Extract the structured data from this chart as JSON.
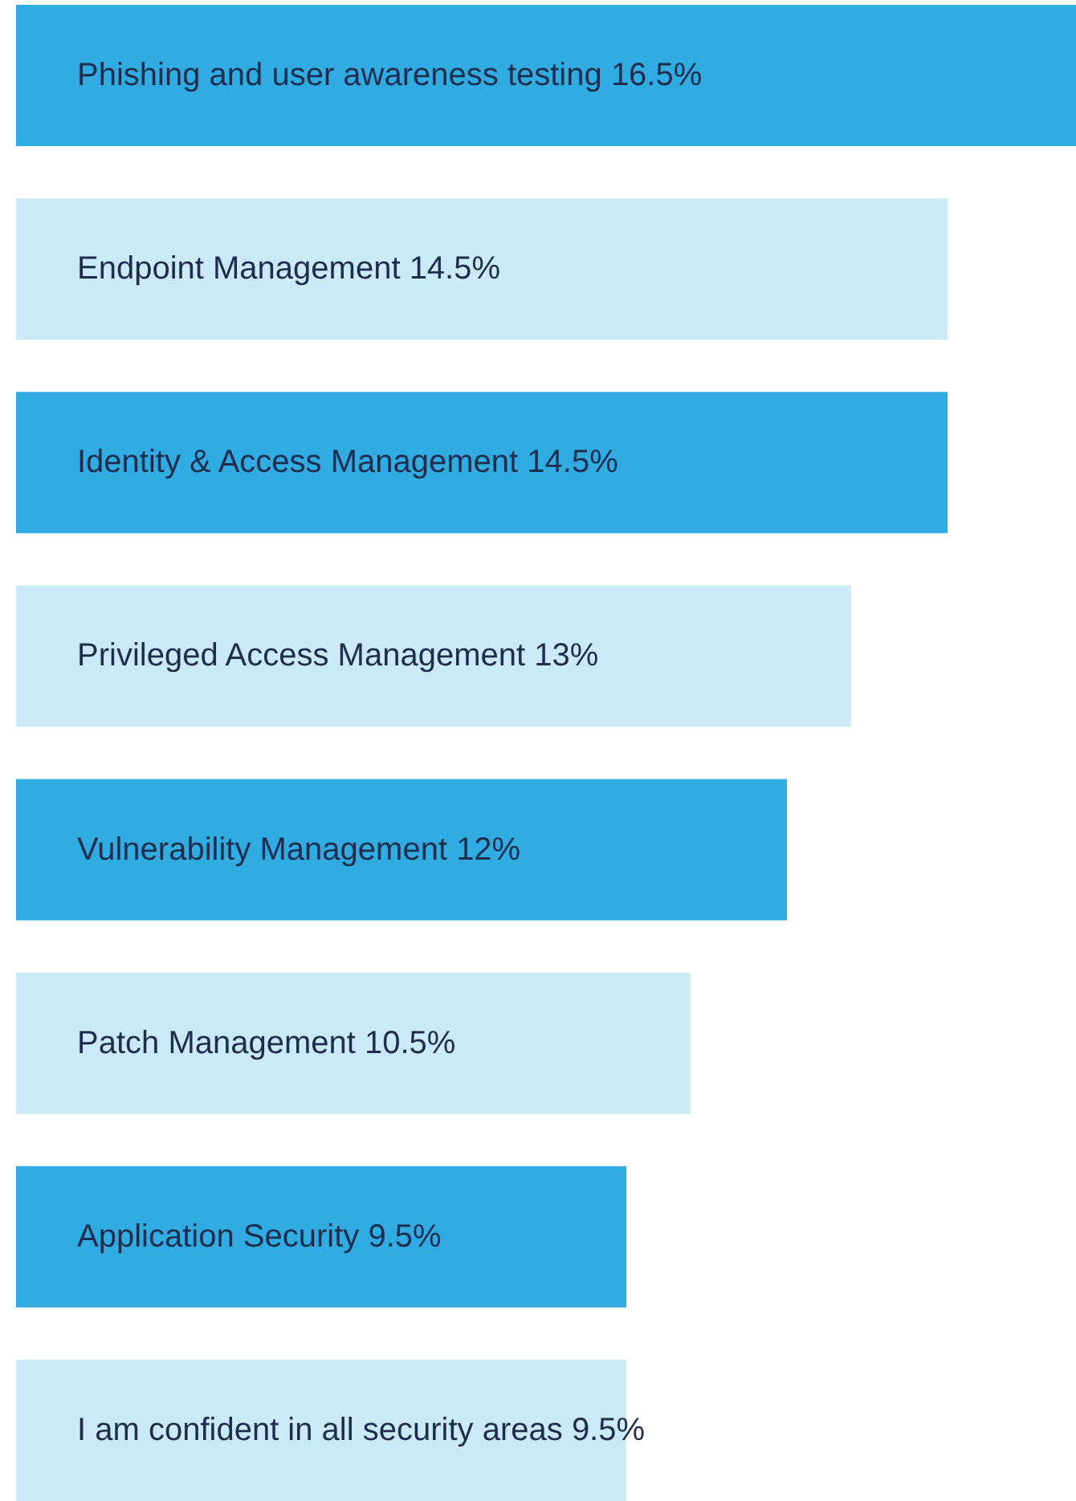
{
  "chart_data": {
    "type": "bar",
    "orientation": "horizontal",
    "categories": [
      "Phishing and user awareness testing",
      "Endpoint Management",
      "Identity & Access Management",
      "Privileged Access Management",
      "Vulnerability Management",
      "Patch Management",
      "Application Security",
      "I am confident in all security areas"
    ],
    "values": [
      16.5,
      14.5,
      14.5,
      13,
      12,
      10.5,
      9.5,
      9.5
    ],
    "value_labels": [
      "16.5%",
      "14.5%",
      "14.5%",
      "13%",
      "12%",
      "10.5%",
      "9.5%",
      "9.5%"
    ],
    "colors": [
      "#30ace2",
      "#cbeaf7",
      "#30ace2",
      "#cbeaf7",
      "#30ace2",
      "#cbeaf7",
      "#30ace2",
      "#cbeaf7"
    ]
  }
}
